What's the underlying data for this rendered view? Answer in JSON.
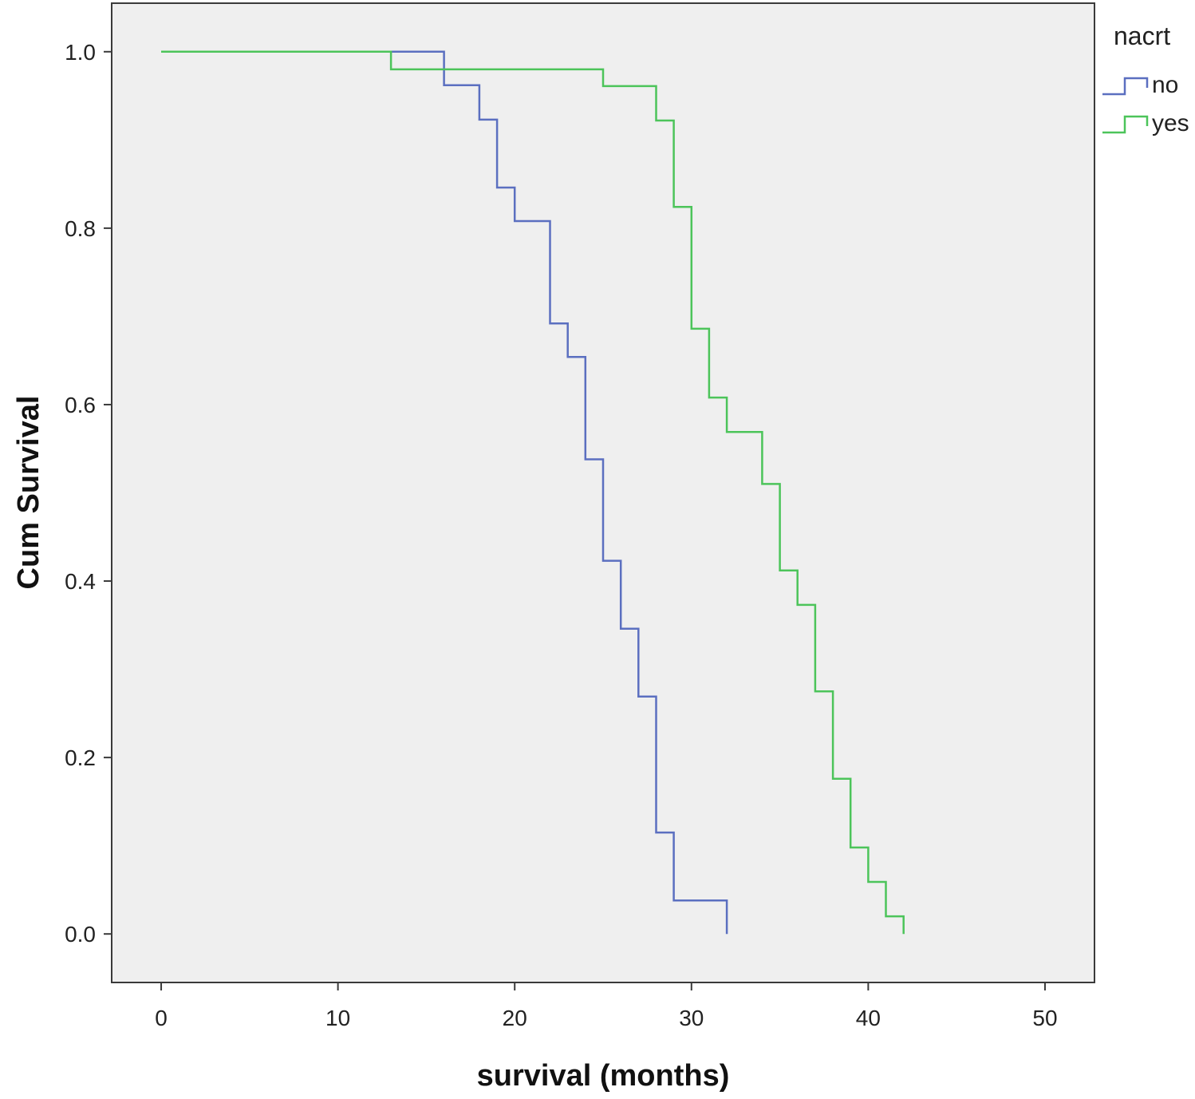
{
  "chart_data": {
    "type": "line",
    "step": true,
    "xlabel": "survival (months)",
    "ylabel": "Cum Survival",
    "xlim": [
      -2.8,
      52.8
    ],
    "ylim": [
      -0.055,
      1.055
    ],
    "xticks": [
      0,
      10,
      20,
      30,
      40,
      50
    ],
    "yticks": [
      0.0,
      0.2,
      0.4,
      0.6,
      0.8,
      1.0
    ],
    "xtick_labels": [
      "0",
      "10",
      "20",
      "30",
      "40",
      "50"
    ],
    "ytick_labels": [
      "0.0",
      "0.2",
      "0.4",
      "0.6",
      "0.8",
      "1.0"
    ],
    "grid": false,
    "plot_background": "#efefef",
    "legend": {
      "title": "nacrt",
      "position": "right-outside-top"
    },
    "series": [
      {
        "name": "no",
        "color": "#5b6fc0",
        "points": [
          [
            0,
            1.0
          ],
          [
            16,
            1.0
          ],
          [
            16,
            0.962
          ],
          [
            18,
            0.962
          ],
          [
            18,
            0.923
          ],
          [
            19,
            0.923
          ],
          [
            19,
            0.846
          ],
          [
            20,
            0.846
          ],
          [
            20,
            0.808
          ],
          [
            22,
            0.808
          ],
          [
            22,
            0.692
          ],
          [
            23,
            0.692
          ],
          [
            23,
            0.654
          ],
          [
            24,
            0.654
          ],
          [
            24,
            0.538
          ],
          [
            25,
            0.538
          ],
          [
            25,
            0.423
          ],
          [
            26,
            0.423
          ],
          [
            26,
            0.346
          ],
          [
            27,
            0.346
          ],
          [
            27,
            0.269
          ],
          [
            28,
            0.269
          ],
          [
            28,
            0.115
          ],
          [
            29,
            0.115
          ],
          [
            29,
            0.038
          ],
          [
            32,
            0.038
          ],
          [
            32,
            0.0
          ]
        ]
      },
      {
        "name": "yes",
        "color": "#4cc45a",
        "points": [
          [
            0,
            1.0
          ],
          [
            13,
            1.0
          ],
          [
            13,
            0.98
          ],
          [
            25,
            0.98
          ],
          [
            25,
            0.961
          ],
          [
            28,
            0.961
          ],
          [
            28,
            0.922
          ],
          [
            29,
            0.922
          ],
          [
            29,
            0.824
          ],
          [
            30,
            0.824
          ],
          [
            30,
            0.686
          ],
          [
            31,
            0.686
          ],
          [
            31,
            0.608
          ],
          [
            32,
            0.608
          ],
          [
            32,
            0.569
          ],
          [
            34,
            0.569
          ],
          [
            34,
            0.51
          ],
          [
            35,
            0.51
          ],
          [
            35,
            0.412
          ],
          [
            36,
            0.412
          ],
          [
            36,
            0.373
          ],
          [
            37,
            0.373
          ],
          [
            37,
            0.275
          ],
          [
            38,
            0.275
          ],
          [
            38,
            0.176
          ],
          [
            39,
            0.176
          ],
          [
            39,
            0.098
          ],
          [
            40,
            0.098
          ],
          [
            40,
            0.059
          ],
          [
            41,
            0.059
          ],
          [
            41,
            0.02
          ],
          [
            42,
            0.02
          ],
          [
            42,
            0.0
          ]
        ]
      }
    ]
  }
}
